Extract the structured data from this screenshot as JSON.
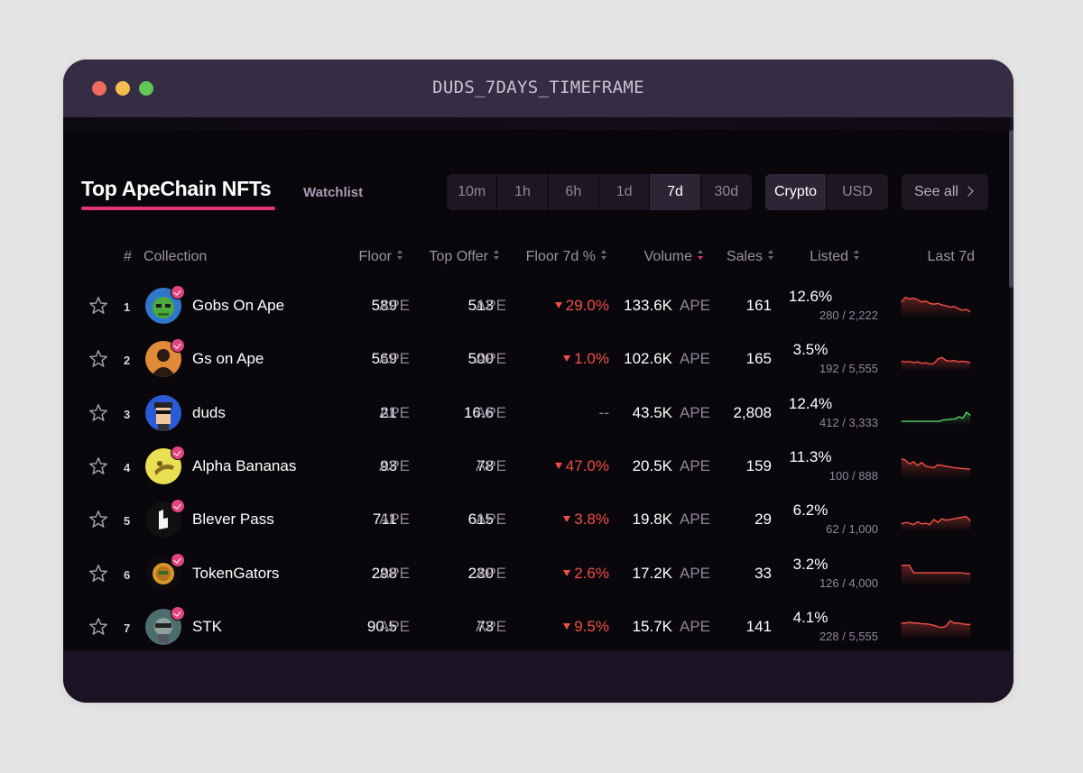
{
  "window": {
    "title": "DUDS_7DAYS_TIMEFRAME"
  },
  "header": {
    "title": "Top ApeChain NFTs",
    "watchlist": "Watchlist",
    "timeframes": [
      "10m",
      "1h",
      "6h",
      "1d",
      "7d",
      "30d"
    ],
    "active_timeframe": "7d",
    "currencies": [
      "Crypto",
      "USD"
    ],
    "active_currency": "Crypto",
    "see_all": "See all"
  },
  "columns": {
    "rank": "#",
    "collection": "Collection",
    "floor": "Floor",
    "top_offer": "Top Offer",
    "floor_change": "Floor 7d %",
    "volume": "Volume",
    "sales": "Sales",
    "listed": "Listed",
    "last7d": "Last 7d"
  },
  "colors": {
    "accent": "#e3356e",
    "down": "#f04f45",
    "up": "#4fd06b"
  },
  "unit": "APE",
  "rows": [
    {
      "rank": "1",
      "name": "Gobs On Ape",
      "floor": "589",
      "top_offer": "513",
      "floor_change": "29.0%",
      "trend": "down",
      "volume": "133.6K",
      "sales": "161",
      "listed_pct": "12.6%",
      "listed_count": "280 / 2,222",
      "verified": true,
      "avatar_icon": "goblin-avatar-icon",
      "spark": [
        30,
        18,
        22,
        20,
        24,
        30,
        28,
        34,
        36,
        34,
        38,
        40,
        44,
        42,
        48,
        52,
        50,
        56
      ]
    },
    {
      "rank": "2",
      "name": "Gs on Ape",
      "floor": "569",
      "top_offer": "500",
      "floor_change": "1.0%",
      "trend": "down",
      "volume": "102.6K",
      "sales": "165",
      "listed_pct": "3.5%",
      "listed_count": "192 / 5,555",
      "verified": true,
      "avatar_icon": "silhouette-avatar-icon",
      "spark": [
        46,
        48,
        47,
        50,
        48,
        52,
        50,
        54,
        52,
        40,
        36,
        44,
        46,
        44,
        48,
        46,
        48,
        50
      ]
    },
    {
      "rank": "3",
      "name": "duds",
      "floor": "21",
      "top_offer": "16.6",
      "floor_change": "--",
      "trend": "none",
      "volume": "43.5K",
      "sales": "2,808",
      "listed_pct": "12.4%",
      "listed_count": "412 / 3,333",
      "verified": false,
      "avatar_icon": "dud-character-avatar-icon",
      "spark": [
        62,
        62,
        62,
        62,
        62,
        62,
        62,
        62,
        62,
        62,
        62,
        58,
        58,
        56,
        56,
        50,
        54,
        38,
        46
      ]
    },
    {
      "rank": "4",
      "name": "Alpha Bananas",
      "floor": "93",
      "top_offer": "78",
      "floor_change": "47.0%",
      "trend": "down",
      "volume": "20.5K",
      "sales": "159",
      "listed_pct": "11.3%",
      "listed_count": "100 / 888",
      "verified": true,
      "avatar_icon": "banana-avatar-icon",
      "spark": [
        20,
        24,
        34,
        28,
        38,
        30,
        40,
        42,
        44,
        36,
        38,
        40,
        42,
        44,
        45,
        46,
        47,
        48
      ]
    },
    {
      "rank": "5",
      "name": "Blever Pass",
      "floor": "711",
      "top_offer": "615",
      "floor_change": "3.8%",
      "trend": "down",
      "volume": "19.8K",
      "sales": "29",
      "listed_pct": "6.2%",
      "listed_count": "62 / 1,000",
      "verified": true,
      "avatar_icon": "blever-logo-avatar-icon",
      "spark": [
        52,
        48,
        50,
        54,
        46,
        52,
        50,
        54,
        40,
        48,
        38,
        42,
        40,
        38,
        36,
        34,
        32,
        44
      ]
    },
    {
      "rank": "6",
      "name": "TokenGators",
      "floor": "298",
      "top_offer": "230",
      "floor_change": "2.6%",
      "trend": "down",
      "volume": "17.2K",
      "sales": "33",
      "listed_pct": "3.2%",
      "listed_count": "126 / 4,000",
      "verified": true,
      "avatar_icon": "gator-coin-avatar-icon",
      "spark": [
        18,
        18,
        18,
        38,
        38,
        38,
        38,
        38,
        38,
        38,
        38,
        38,
        38,
        38,
        38,
        38,
        40,
        40
      ]
    },
    {
      "rank": "7",
      "name": "STK",
      "floor": "90.5",
      "top_offer": "73",
      "floor_change": "9.5%",
      "trend": "down",
      "volume": "15.7K",
      "sales": "141",
      "listed_pct": "4.1%",
      "listed_count": "228 / 5,555",
      "verified": true,
      "avatar_icon": "stk-character-avatar-icon",
      "spark": [
        30,
        30,
        28,
        30,
        30,
        32,
        32,
        34,
        36,
        40,
        42,
        38,
        24,
        30,
        30,
        32,
        34,
        34
      ]
    }
  ]
}
